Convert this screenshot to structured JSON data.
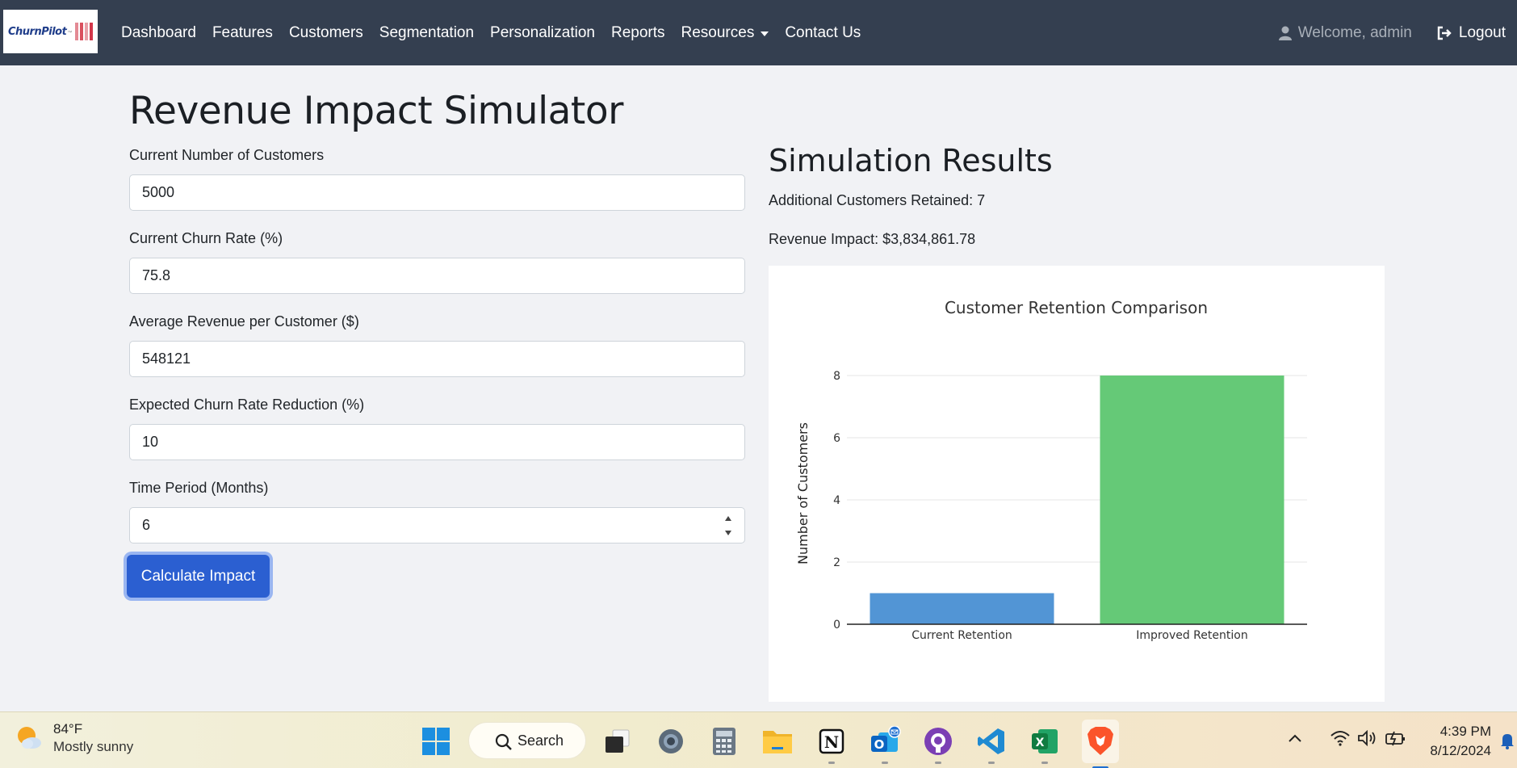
{
  "navbar": {
    "brand": "ChurnPilot",
    "brand_tm": "™",
    "links": [
      "Dashboard",
      "Features",
      "Customers",
      "Segmentation",
      "Personalization",
      "Reports",
      "Resources",
      "Contact Us"
    ],
    "welcome": "Welcome, admin",
    "logout": "Logout"
  },
  "page": {
    "title": "Revenue Impact Simulator"
  },
  "form": {
    "fields": [
      {
        "label": "Current Number of Customers",
        "value": "5000"
      },
      {
        "label": "Current Churn Rate (%)",
        "value": "75.8"
      },
      {
        "label": "Average Revenue per Customer ($)",
        "value": "548121"
      },
      {
        "label": "Expected Churn Rate Reduction (%)",
        "value": "10"
      },
      {
        "label": "Time Period (Months)",
        "value": "6"
      }
    ],
    "submit_label": "Calculate Impact"
  },
  "results": {
    "title": "Simulation Results",
    "retained": "Additional Customers Retained: 7",
    "revenue": "Revenue Impact: $3,834,861.78"
  },
  "chart_data": {
    "type": "bar",
    "title": "Customer Retention Comparison",
    "categories": [
      "Current Retention",
      "Improved Retention"
    ],
    "values": [
      1,
      8
    ],
    "colors": [
      "#5295d5",
      "#65c977"
    ],
    "ylabel": "Number of Customers",
    "xlabel": "",
    "ylim": [
      0,
      8
    ],
    "yticks": [
      0,
      2,
      4,
      6,
      8
    ],
    "grid": true
  },
  "taskbar": {
    "weather_temp": "84°F",
    "weather_desc": "Mostly sunny",
    "search_label": "Search",
    "time": "4:39 PM",
    "date": "8/12/2024"
  }
}
